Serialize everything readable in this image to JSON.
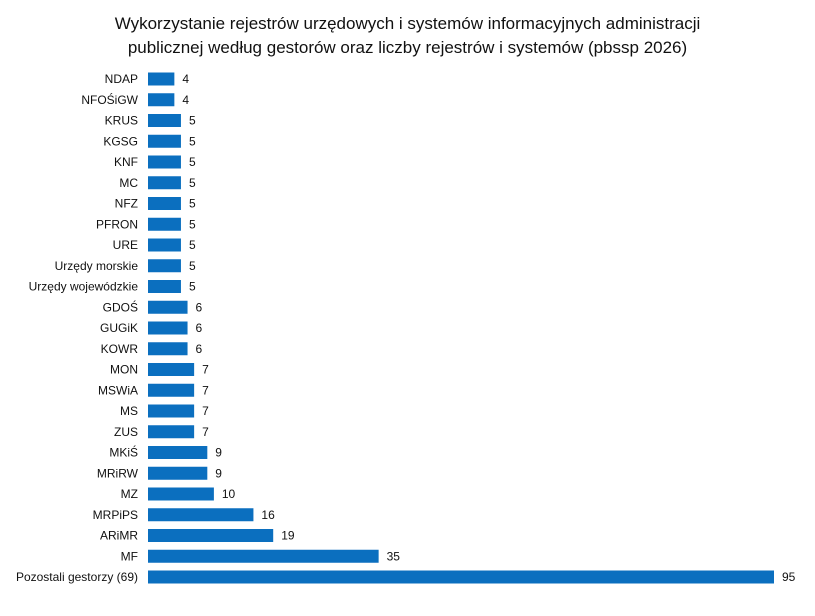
{
  "chart_data": {
    "type": "bar",
    "orientation": "horizontal",
    "title_lines": [
      "Wykorzystanie rejestrów urzędowych i systemów informacyjnych administracji",
      "publicznej według gestorów oraz liczby rejestrów i systemów (pbssp 2026)"
    ],
    "categories": [
      "NDAP",
      "NFOŚiGW",
      "KRUS",
      "KGSG",
      "KNF",
      "MC",
      "NFZ",
      "PFRON",
      "URE",
      "Urzędy morskie",
      "Urzędy wojewódzkie",
      "GDOŚ",
      "GUGiK",
      "KOWR",
      "MON",
      "MSWiA",
      "MS",
      "ZUS",
      "MKiŚ",
      "MRiRW",
      "MZ",
      "MRPiPS",
      "ARiMR",
      "MF",
      "Pozostali gestorzy (69)"
    ],
    "values": [
      4,
      4,
      5,
      5,
      5,
      5,
      5,
      5,
      5,
      5,
      5,
      6,
      6,
      6,
      7,
      7,
      7,
      7,
      9,
      9,
      10,
      16,
      19,
      35,
      95
    ],
    "xlim": [
      0,
      95
    ],
    "grid": false,
    "legend": "none",
    "colors": {
      "bar": "#0B6FBF"
    }
  }
}
